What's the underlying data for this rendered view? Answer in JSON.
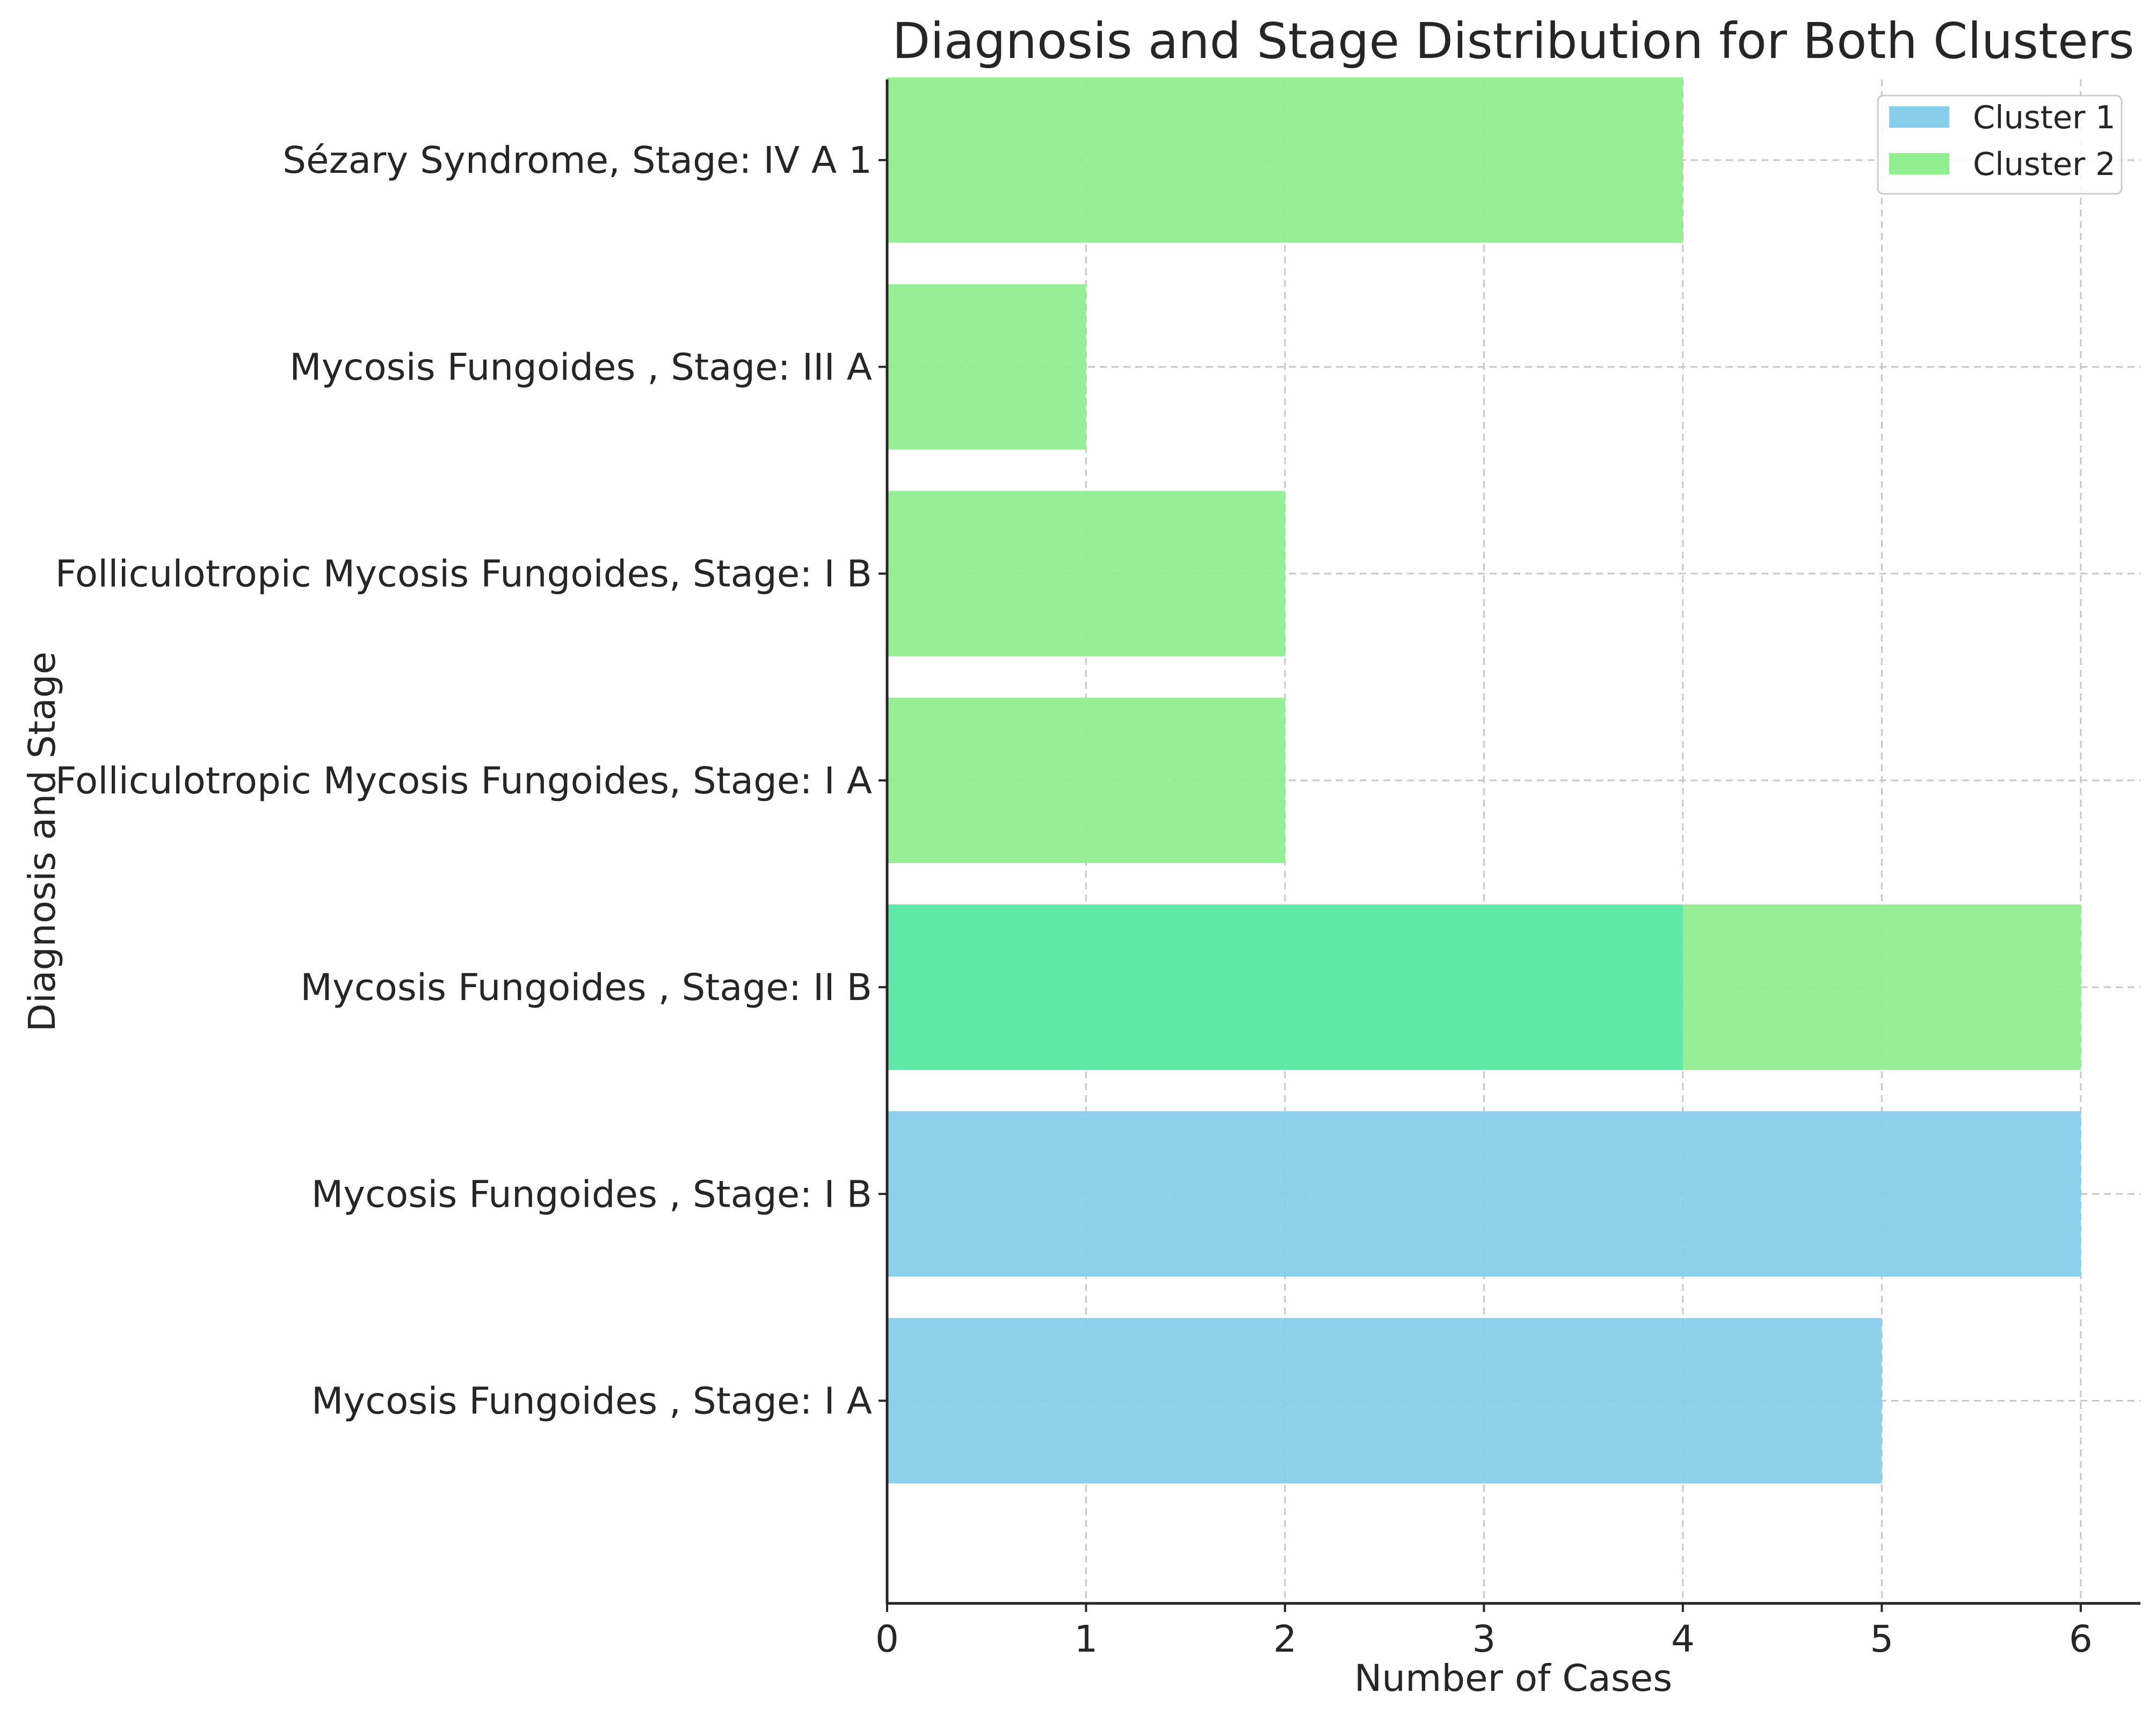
{
  "chart_data": {
    "type": "bar",
    "orientation": "horizontal",
    "title": "Diagnosis and Stage Distribution for Both Clusters",
    "xlabel": "Number of Cases",
    "ylabel": "Diagnosis and Stage",
    "xlim": [
      0,
      6.3
    ],
    "xticks": [
      0,
      1,
      2,
      3,
      4,
      5,
      6
    ],
    "grid": true,
    "legend_position": "top-right",
    "categories": [
      "Mycosis Fungoides , Stage: I A",
      "Mycosis Fungoides , Stage: I B",
      "Mycosis Fungoides , Stage: II B",
      "Folliculotropic Mycosis Fungoides, Stage: I A",
      "Folliculotropic Mycosis Fungoides, Stage: I B",
      "Mycosis Fungoides , Stage: III A",
      "Sézary Syndrome, Stage: IV A 1"
    ],
    "series": [
      {
        "name": "Cluster 1",
        "color": "#87ceeb",
        "values": [
          5,
          6,
          4,
          0,
          0,
          0,
          0
        ]
      },
      {
        "name": "Cluster 2",
        "color": "#90ee90",
        "values": [
          0,
          0,
          6,
          2,
          2,
          1,
          4
        ]
      }
    ]
  }
}
